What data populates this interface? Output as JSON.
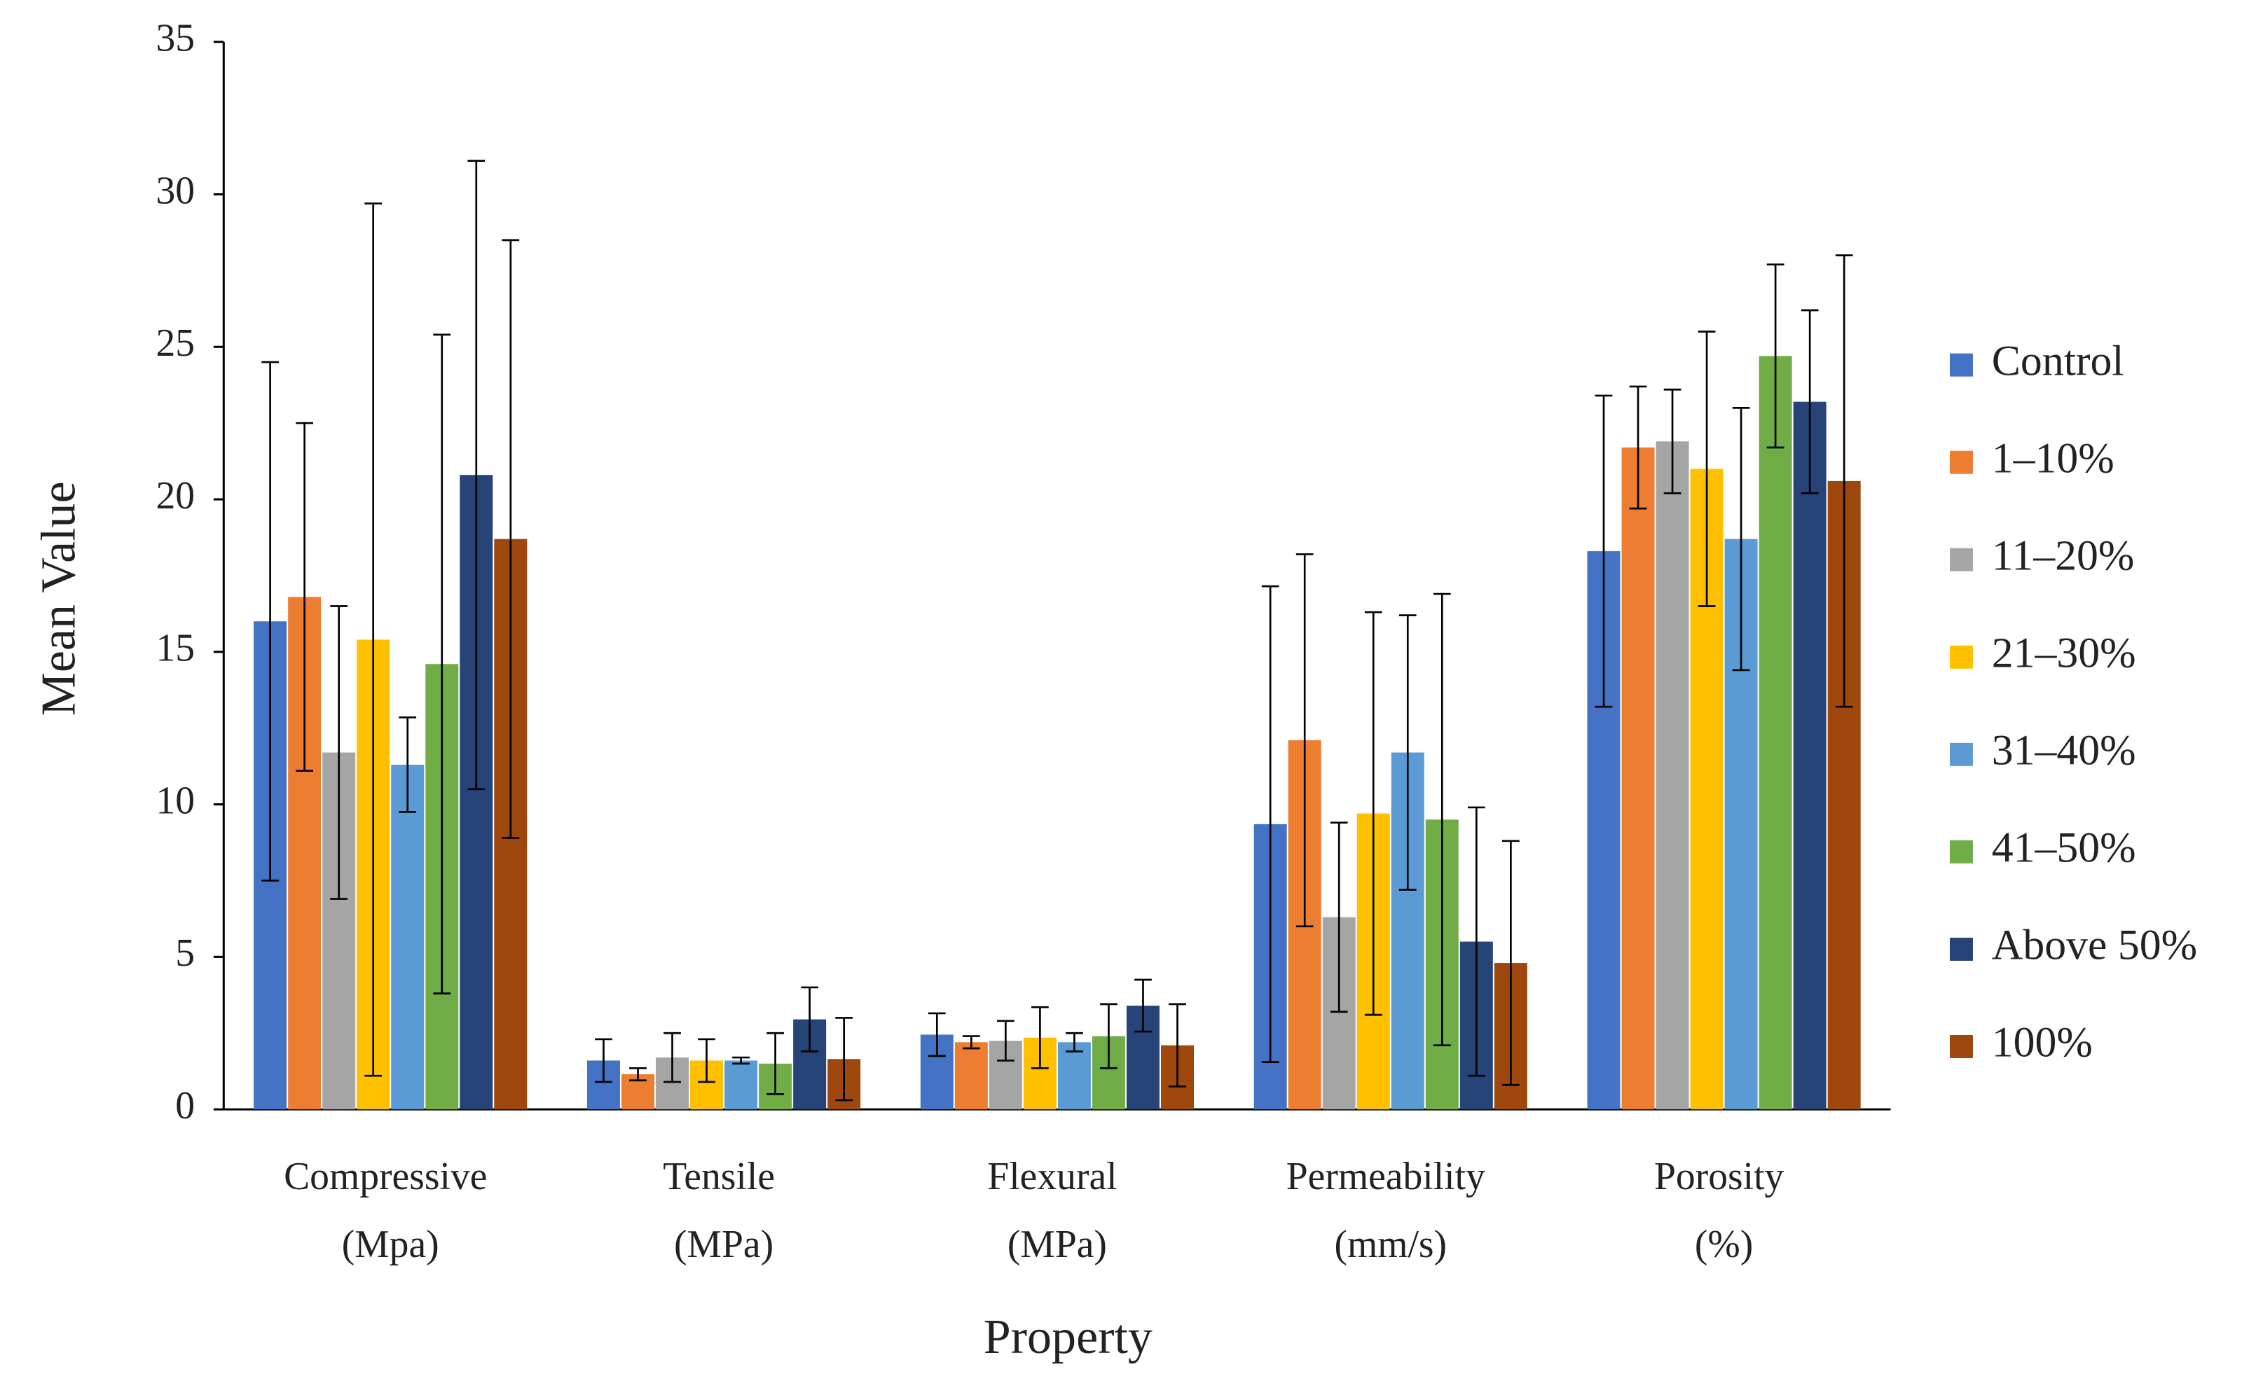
{
  "chart_data": {
    "type": "bar",
    "x_label": "Property",
    "y_label": "Mean Value",
    "categories": [
      "Compressive (Mpa)",
      "Tensile (MPa)",
      "Flexural (MPa)",
      "Permeability (mm/s)",
      "Porosity (%)"
    ],
    "series": [
      {
        "name": "Control",
        "color": "#4472c4",
        "values": [
          16.0,
          1.6,
          2.45,
          9.35,
          18.3
        ],
        "errors": [
          8.5,
          0.7,
          0.7,
          7.8,
          5.1
        ]
      },
      {
        "name": "1–10%",
        "color": "#ed7d31",
        "values": [
          16.8,
          1.15,
          2.2,
          12.1,
          21.7
        ],
        "errors": [
          5.7,
          0.2,
          0.2,
          6.1,
          2.0
        ]
      },
      {
        "name": "11–20%",
        "color": "#a5a5a5",
        "values": [
          11.7,
          1.7,
          2.25,
          6.3,
          21.9
        ],
        "errors": [
          4.8,
          0.8,
          0.65,
          3.1,
          1.7
        ]
      },
      {
        "name": "21–30%",
        "color": "#ffc000",
        "values": [
          15.4,
          1.6,
          2.35,
          9.7,
          21.0
        ],
        "errors": [
          14.3,
          0.7,
          1.0,
          6.6,
          4.5
        ]
      },
      {
        "name": "31–40%",
        "color": "#5b9bd5",
        "values": [
          11.3,
          1.6,
          2.2,
          11.7,
          18.7
        ],
        "errors": [
          1.55,
          0.1,
          0.3,
          4.5,
          4.3
        ]
      },
      {
        "name": "41–50%",
        "color": "#70ad47",
        "values": [
          14.6,
          1.5,
          2.4,
          9.5,
          24.7
        ],
        "errors": [
          10.8,
          1.0,
          1.05,
          7.4,
          3.0
        ]
      },
      {
        "name": "Above 50%",
        "color": "#264478",
        "values": [
          20.8,
          2.95,
          3.4,
          5.5,
          23.2
        ],
        "errors": [
          10.3,
          1.05,
          0.85,
          4.4,
          3.0
        ]
      },
      {
        "name": "100%",
        "color": "#9e480e",
        "values": [
          18.7,
          1.65,
          2.1,
          4.8,
          20.6
        ],
        "errors": [
          9.8,
          1.35,
          1.35,
          4.0,
          7.4
        ]
      }
    ],
    "ylim": [
      0,
      35
    ],
    "yticks": [
      0,
      5,
      10,
      15,
      20,
      25,
      30,
      35
    ],
    "grid": false,
    "legend": "right"
  }
}
